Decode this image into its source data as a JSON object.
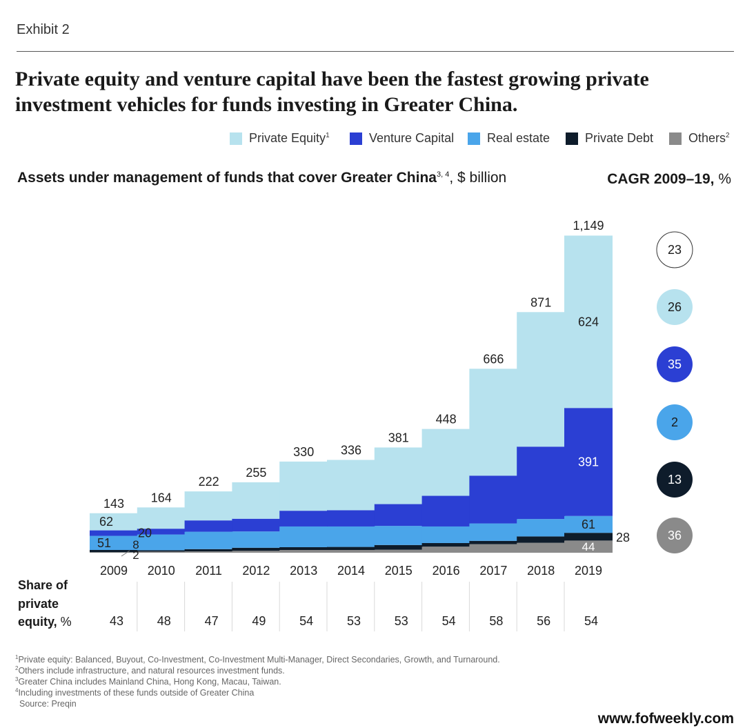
{
  "exhibit": "Exhibit 2",
  "title": "Private equity and venture capital have been the fastest growing private investment vehicles for funds investing in Greater China.",
  "legend": [
    {
      "key": "pe",
      "label": "Private Equity",
      "sup": "1",
      "color": "#b7e2ee"
    },
    {
      "key": "vc",
      "label": "Venture Capital",
      "sup": "",
      "color": "#2b3fd3"
    },
    {
      "key": "re",
      "label": "Real estate",
      "sup": "",
      "color": "#4aa5ea"
    },
    {
      "key": "pd",
      "label": "Private Debt",
      "sup": "",
      "color": "#0e1c2b"
    },
    {
      "key": "ot",
      "label": "Others",
      "sup": "2",
      "color": "#8a8a8a"
    }
  ],
  "subtitle": {
    "bold": "Assets under management of funds that cover Greater China",
    "sup": "3, 4",
    "rest": ", $ billion"
  },
  "cagr_title": {
    "bold": "CAGR 2009–19,",
    "rest": " %"
  },
  "share_label": [
    "Share of",
    "private"
  ],
  "share_label_last": {
    "bold": "equity,",
    "rest": " %"
  },
  "chart_data": {
    "type": "bar",
    "stacked": true,
    "title": "Assets under management of funds that cover Greater China, $ billion",
    "categories": [
      "2009",
      "2010",
      "2011",
      "2012",
      "2013",
      "2014",
      "2015",
      "2016",
      "2017",
      "2018",
      "2019"
    ],
    "totals": [
      143,
      164,
      222,
      255,
      330,
      336,
      381,
      448,
      666,
      871,
      1149
    ],
    "total_labels": [
      "143",
      "164",
      "222",
      "255",
      "330",
      "336",
      "381",
      "448",
      "666",
      "871",
      "1,149"
    ],
    "series": [
      {
        "key": "ot",
        "name": "Others",
        "values": [
          2,
          4,
          5,
          7,
          10,
          10,
          11,
          22,
          31,
          36,
          44
        ]
      },
      {
        "key": "pd",
        "name": "Private Debt",
        "values": [
          8,
          5,
          8,
          11,
          10,
          11,
          17,
          13,
          12,
          23,
          28
        ]
      },
      {
        "key": "re",
        "name": "Real estate",
        "values": [
          51,
          57,
          63,
          59,
          75,
          74,
          69,
          60,
          63,
          63,
          61
        ]
      },
      {
        "key": "vc",
        "name": "Venture Capital",
        "values": [
          20,
          21,
          41,
          46,
          57,
          59,
          79,
          111,
          173,
          262,
          391
        ]
      },
      {
        "key": "pe",
        "name": "Private Equity",
        "values": [
          62,
          77,
          105,
          132,
          178,
          182,
          205,
          242,
          387,
          487,
          624
        ]
      }
    ],
    "labels_2009": {
      "pe": "62",
      "vc": "20",
      "re": "51",
      "pd": "8",
      "ot": "2"
    },
    "labels_2019": {
      "pe": "624",
      "vc": "391",
      "re": "61",
      "pd": "28",
      "ot": "44"
    },
    "share_of_private_equity": [
      "43",
      "48",
      "47",
      "49",
      "54",
      "53",
      "53",
      "54",
      "58",
      "56",
      "54"
    ],
    "cagr": [
      {
        "key": "total",
        "value": "23"
      },
      {
        "key": "pe",
        "value": "26"
      },
      {
        "key": "vc",
        "value": "35"
      },
      {
        "key": "re",
        "value": "2"
      },
      {
        "key": "pd",
        "value": "13"
      },
      {
        "key": "ot",
        "value": "36"
      }
    ],
    "ylim": [
      0,
      1149
    ]
  },
  "footnotes": [
    {
      "sup": "1",
      "text": "Private equity: Balanced, Buyout, Co-Investment, Co-Investment Multi-Manager, Direct Secondaries, Growth, and Turnaround."
    },
    {
      "sup": "2",
      "text": "Others include infrastructure, and natural resources investment funds."
    },
    {
      "sup": "3",
      "text": "Greater China includes Mainland China, Hong Kong, Macau, Taiwan."
    },
    {
      "sup": "4",
      "text": "Including investments of these funds outside of Greater China"
    },
    {
      "sup": "",
      "text": "Source: Preqin"
    }
  ],
  "watermark": "www.fofweekly.com"
}
